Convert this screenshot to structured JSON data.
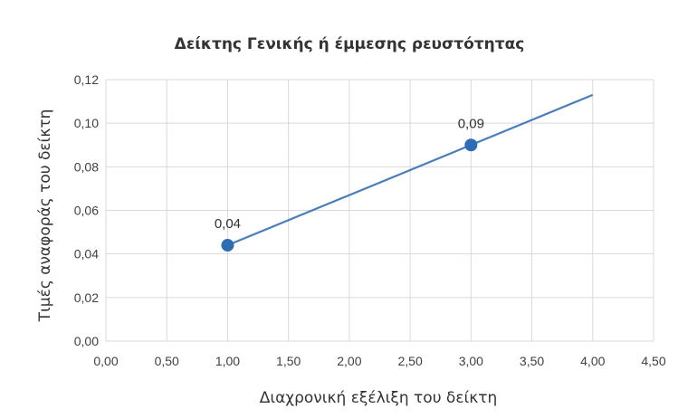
{
  "chart_data": {
    "type": "scatter",
    "title": "Δείκτης Γενικής ή έμμεσης ρευστότητας",
    "xlabel": "Διαχρονική εξέλιξη του δείκτη",
    "ylabel": "Τιμές αναφοράς του δείκτη",
    "xlim": [
      0,
      4.5
    ],
    "ylim": [
      0,
      0.12
    ],
    "x_ticks": [
      "0,00",
      "0,50",
      "1,00",
      "1,50",
      "2,00",
      "2,50",
      "3,00",
      "3,50",
      "4,00",
      "4,50"
    ],
    "y_ticks": [
      "0,00",
      "0,02",
      "0,04",
      "0,06",
      "0,08",
      "0,10",
      "0,12"
    ],
    "grid": true,
    "legend": "none",
    "series": [
      {
        "points": [
          {
            "x": 1.0,
            "y": 0.044,
            "label": "0,04"
          },
          {
            "x": 3.0,
            "y": 0.09,
            "label": "0,09"
          }
        ],
        "trendline": [
          {
            "x": 1.0,
            "y": 0.044
          },
          {
            "x": 4.0,
            "y": 0.113
          }
        ],
        "color": "#2e6db4",
        "line_color": "#4a7ebb"
      }
    ]
  }
}
